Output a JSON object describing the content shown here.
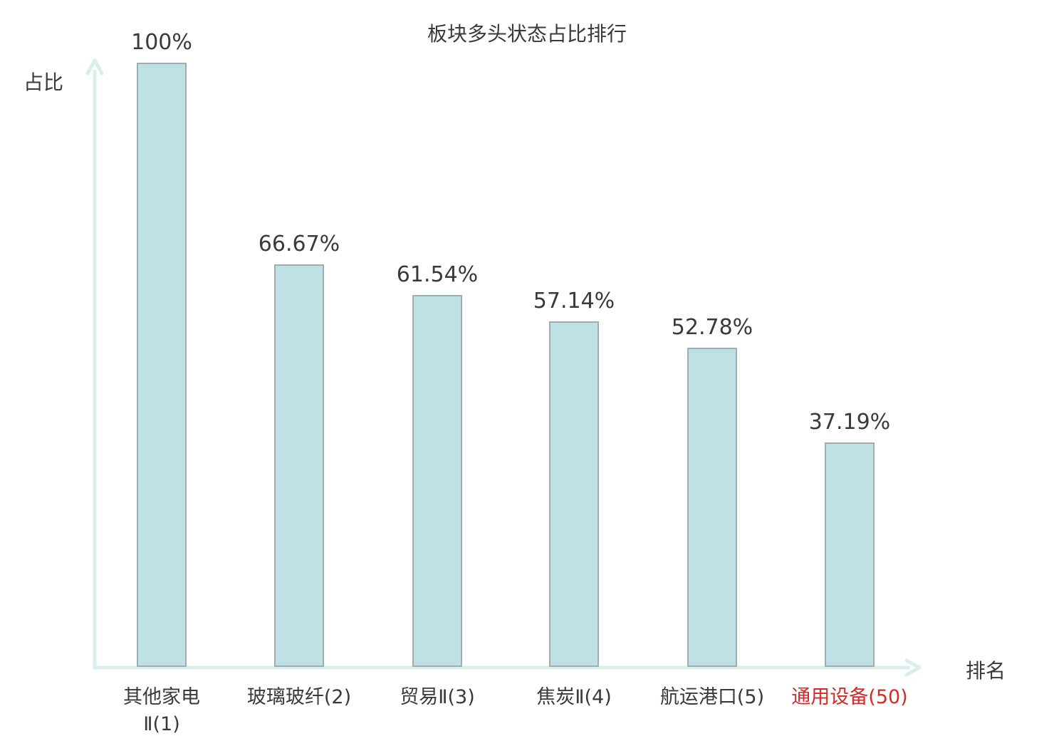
{
  "title": "板块多头状态占比排行",
  "y_axis_label": "占比",
  "x_axis_label": "排名",
  "colors": {
    "bar_fill": "#bfe0e4",
    "bar_border": "#9dadb2",
    "axis": "#daeeec",
    "text": "#3a3a3a",
    "highlight": "#dc2723"
  },
  "chart_data": {
    "type": "bar",
    "title": "板块多头状态占比排行",
    "xlabel": "排名",
    "ylabel": "占比",
    "ylim": [
      0,
      100
    ],
    "grid": false,
    "legend": "none",
    "categories": [
      "其他家电Ⅱ(1)",
      "玻璃玻纤(2)",
      "贸易Ⅱ(3)",
      "焦炭Ⅱ(4)",
      "航运港口(5)",
      "通用设备(50)"
    ],
    "values": [
      100,
      66.67,
      61.54,
      57.14,
      52.78,
      37.19
    ],
    "value_labels": [
      "100%",
      "66.67%",
      "61.54%",
      "57.14%",
      "52.78%",
      "37.19%"
    ],
    "highlighted_category_index": 5,
    "bars": [
      {
        "category": "其他家电Ⅱ(1)",
        "display_label": "其他家电\nⅡ(1)",
        "value": 100,
        "value_label": "100%",
        "highlighted": false
      },
      {
        "category": "玻璃玻纤(2)",
        "display_label": "玻璃玻纤(2)",
        "value": 66.67,
        "value_label": "66.67%",
        "highlighted": false
      },
      {
        "category": "贸易Ⅱ(3)",
        "display_label": "贸易Ⅱ(3)",
        "value": 61.54,
        "value_label": "61.54%",
        "highlighted": false
      },
      {
        "category": "焦炭Ⅱ(4)",
        "display_label": "焦炭Ⅱ(4)",
        "value": 57.14,
        "value_label": "57.14%",
        "highlighted": false
      },
      {
        "category": "航运港口(5)",
        "display_label": "航运港口(5)",
        "value": 52.78,
        "value_label": "52.78%",
        "highlighted": false
      },
      {
        "category": "通用设备(50)",
        "display_label": "通用设备(50)",
        "value": 37.19,
        "value_label": "37.19%",
        "highlighted": true
      }
    ]
  }
}
